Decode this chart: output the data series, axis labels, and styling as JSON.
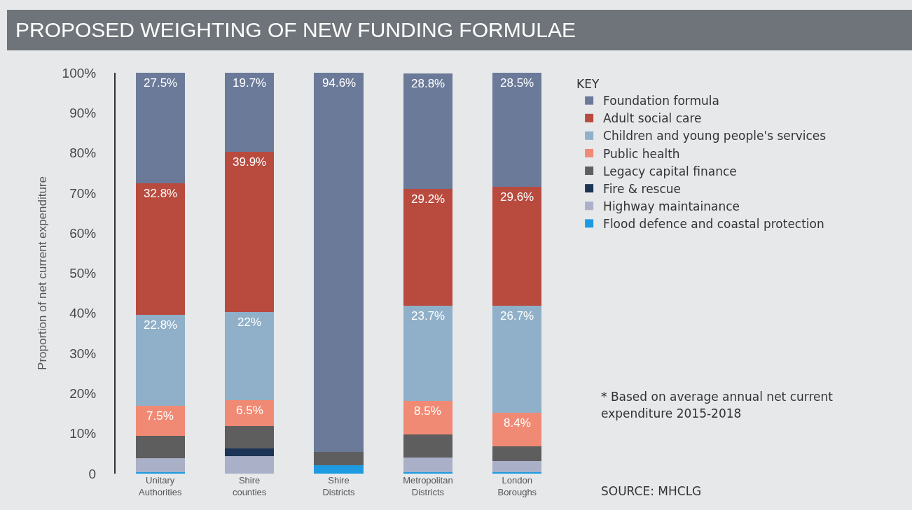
{
  "chart_data": {
    "type": "bar",
    "title": "PROPOSED WEIGHTING OF NEW FUNDING FORMULAE",
    "ylabel": "Proportion of net current expenditure",
    "legend_title": "KEY",
    "categories": [
      "Unitary Authorities",
      "Shire counties",
      "Shire Districts",
      "Metropolitan Districts",
      "London Boroughs"
    ],
    "stacked": true,
    "legend": "right",
    "grid": false,
    "ylim": [
      0,
      100
    ],
    "yticks": [
      0,
      {
        "value": 10,
        "label": "10%"
      },
      {
        "value": 20,
        "label": "20%"
      },
      {
        "value": 30,
        "label": "30%"
      },
      {
        "value": 40,
        "label": "40%"
      },
      {
        "value": 50,
        "label": "50%"
      },
      {
        "value": 60,
        "label": "60%"
      },
      {
        "value": 70,
        "label": "70%"
      },
      {
        "value": 80,
        "label": "80%"
      },
      {
        "value": 90,
        "label": "90%"
      },
      {
        "value": 100,
        "label": "100%"
      }
    ],
    "series": [
      {
        "name": "Flood defence and coastal protection",
        "color": "#1e9be0",
        "values": [
          0.3,
          0,
          2.1,
          0.3,
          0.3
        ]
      },
      {
        "name": "Highway maintainance",
        "color": "#a9b0c8",
        "values": [
          3.5,
          4.4,
          0,
          3.8,
          2.8
        ]
      },
      {
        "name": "Fire & rescue",
        "color": "#1c3557",
        "values": [
          0,
          1.9,
          0,
          0,
          0
        ]
      },
      {
        "name": "Legacy capital finance",
        "color": "#5e5e5e",
        "values": [
          5.6,
          5.6,
          3.3,
          5.6,
          3.7
        ]
      },
      {
        "name": "Public health",
        "color": "#f08a74",
        "values": [
          7.5,
          6.5,
          0,
          8.5,
          8.4
        ],
        "value_labels": [
          "7.5%",
          "6.5%",
          null,
          "8.5%",
          "8.4%"
        ]
      },
      {
        "name": "Children and young people's services",
        "color": "#8fb0c8",
        "values": [
          22.8,
          22,
          0,
          23.7,
          26.7
        ],
        "value_labels": [
          "22.8%",
          "22%",
          null,
          "23.7%",
          "26.7%"
        ]
      },
      {
        "name": "Adult social care",
        "color": "#b84a3e",
        "values": [
          32.8,
          39.9,
          0,
          29.2,
          29.6
        ],
        "value_labels": [
          "32.8%",
          "39.9%",
          null,
          "29.2%",
          "29.6%"
        ]
      },
      {
        "name": "Foundation formula",
        "color": "#6b7a99",
        "values": [
          27.5,
          19.7,
          94.6,
          28.8,
          28.5
        ],
        "value_labels": [
          "27.5%",
          "19.7%",
          "94.6%",
          "28.8%",
          "28.5%"
        ]
      }
    ],
    "annotations": [
      "* Based on average annual net current expenditure 2015-2018",
      "SOURCE: MHCLG"
    ]
  }
}
